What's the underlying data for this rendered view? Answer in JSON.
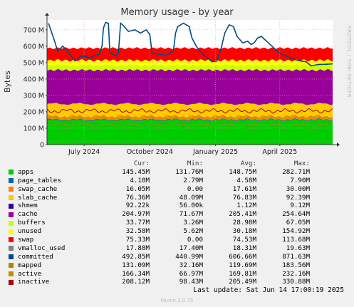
{
  "chart_data": {
    "type": "area",
    "title": "Memory usage - by year",
    "ylabel": "Bytes",
    "y_ticks": [
      "0",
      "100 M",
      "200 M",
      "300 M",
      "400 M",
      "500 M",
      "600 M",
      "700 M"
    ],
    "y_tick_values": [
      0,
      100,
      200,
      300,
      400,
      500,
      600,
      700
    ],
    "ylim": [
      0,
      760
    ],
    "x_tick_labels": [
      "July 2024",
      "October 2024",
      "January 2025",
      "April 2025"
    ],
    "x_tick_dates": [
      "2024-07-01",
      "2024-10-01",
      "2025-01-01",
      "2025-04-01"
    ],
    "x_range": [
      "2024-05-10",
      "2025-06-14"
    ],
    "grid": true,
    "stack_order": [
      "apps",
      "page_tables",
      "swap_cache",
      "slab_cache",
      "shmem",
      "cache",
      "buffers",
      "unused",
      "swap"
    ],
    "line_series": [
      "vmalloc_used",
      "committed",
      "mapped",
      "active",
      "inactive"
    ],
    "committed_trace": [
      [
        "2024-05-12",
        740
      ],
      [
        "2024-05-20",
        640
      ],
      [
        "2024-05-25",
        570
      ],
      [
        "2024-06-01",
        600
      ],
      [
        "2024-06-10",
        560
      ],
      [
        "2024-06-18",
        510
      ],
      [
        "2024-06-26",
        540
      ],
      [
        "2024-07-05",
        535
      ],
      [
        "2024-07-10",
        525
      ],
      [
        "2024-07-16",
        545
      ],
      [
        "2024-07-22",
        550
      ],
      [
        "2024-07-26",
        600
      ],
      [
        "2024-07-28",
        710
      ],
      [
        "2024-07-31",
        745
      ],
      [
        "2024-08-04",
        740
      ],
      [
        "2024-08-06",
        560
      ],
      [
        "2024-08-14",
        540
      ],
      [
        "2024-08-18",
        560
      ],
      [
        "2024-08-21",
        740
      ],
      [
        "2024-08-24",
        730
      ],
      [
        "2024-09-01",
        690
      ],
      [
        "2024-09-10",
        700
      ],
      [
        "2024-09-18",
        680
      ],
      [
        "2024-09-26",
        700
      ],
      [
        "2024-10-01",
        670
      ],
      [
        "2024-10-04",
        560
      ],
      [
        "2024-10-14",
        550
      ],
      [
        "2024-10-24",
        545
      ],
      [
        "2024-11-03",
        570
      ],
      [
        "2024-11-06",
        680
      ],
      [
        "2024-11-09",
        720
      ],
      [
        "2024-11-17",
        740
      ],
      [
        "2024-11-25",
        720
      ],
      [
        "2024-11-29",
        650
      ],
      [
        "2024-12-05",
        600
      ],
      [
        "2024-12-12",
        560
      ],
      [
        "2024-12-20",
        530
      ],
      [
        "2024-12-27",
        505
      ],
      [
        "2025-01-03",
        510
      ],
      [
        "2025-01-09",
        590
      ],
      [
        "2025-01-14",
        680
      ],
      [
        "2025-01-20",
        730
      ],
      [
        "2025-01-26",
        720
      ],
      [
        "2025-01-31",
        660
      ],
      [
        "2025-02-08",
        620
      ],
      [
        "2025-02-15",
        630
      ],
      [
        "2025-02-20",
        610
      ],
      [
        "2025-02-24",
        620
      ],
      [
        "2025-03-01",
        650
      ],
      [
        "2025-03-06",
        660
      ],
      [
        "2025-03-11",
        640
      ],
      [
        "2025-03-16",
        620
      ],
      [
        "2025-03-21",
        600
      ],
      [
        "2025-03-31",
        560
      ],
      [
        "2025-04-10",
        540
      ],
      [
        "2025-04-20",
        520
      ],
      [
        "2025-04-30",
        510
      ],
      [
        "2025-05-08",
        505
      ],
      [
        "2025-05-15",
        480
      ],
      [
        "2025-05-25",
        488
      ],
      [
        "2025-06-05",
        490
      ],
      [
        "2025-06-14",
        492
      ]
    ],
    "series": [
      {
        "name": "apps",
        "color": "#00cc00",
        "cur": "145.45M",
        "min": "131.76M",
        "avg": "148.75M",
        "max": "282.71M"
      },
      {
        "name": "page_tables",
        "color": "#0066b3",
        "cur": "4.18M",
        "min": "2.79M",
        "avg": "4.58M",
        "max": "7.90M"
      },
      {
        "name": "swap_cache",
        "color": "#ff8000",
        "cur": "16.05M",
        "min": "0.00",
        "avg": "17.61M",
        "max": "30.00M"
      },
      {
        "name": "slab_cache",
        "color": "#ffcc00",
        "cur": "76.36M",
        "min": "48.09M",
        "avg": "76.83M",
        "max": "92.39M"
      },
      {
        "name": "shmem",
        "color": "#330099",
        "cur": "92.22k",
        "min": "56.00k",
        "avg": "1.12M",
        "max": "9.12M"
      },
      {
        "name": "cache",
        "color": "#990099",
        "cur": "204.97M",
        "min": "71.67M",
        "avg": "205.41M",
        "max": "254.64M"
      },
      {
        "name": "buffers",
        "color": "#ccff00",
        "cur": "33.77M",
        "min": "3.26M",
        "avg": "28.98M",
        "max": "67.05M"
      },
      {
        "name": "unused",
        "color": "#ffff00",
        "cur": "32.58M",
        "min": "5.62M",
        "avg": "30.18M",
        "max": "154.92M"
      },
      {
        "name": "swap",
        "color": "#ff0000",
        "cur": "75.33M",
        "min": "0.00",
        "avg": "74.53M",
        "max": "113.68M"
      },
      {
        "name": "vmalloc_used",
        "color": "#808080",
        "cur": "17.88M",
        "min": "17.40M",
        "avg": "18.31M",
        "max": "19.63M"
      },
      {
        "name": "committed",
        "color": "#004c80",
        "cur": "492.85M",
        "min": "440.99M",
        "avg": "606.66M",
        "max": "871.63M"
      },
      {
        "name": "mapped",
        "color": "#b38600",
        "cur": "131.09M",
        "min": "32.16M",
        "avg": "119.69M",
        "max": "183.56M"
      },
      {
        "name": "active",
        "color": "#c09000",
        "cur": "166.34M",
        "min": "66.97M",
        "avg": "169.81M",
        "max": "232.16M"
      },
      {
        "name": "inactive",
        "color": "#b30000",
        "cur": "208.12M",
        "min": "98.43M",
        "avg": "205.49M",
        "max": "330.88M"
      }
    ]
  },
  "legend_header": {
    "cur": "Cur:",
    "min": "Min:",
    "avg": "Avg:",
    "max": "Max:"
  },
  "last_update": "Last update: Sat Jun 14 17:00:19 2025",
  "side_watermark": "RRDTOOL / TOBI OETIKER",
  "munin_version": "Munin 2.0.75"
}
